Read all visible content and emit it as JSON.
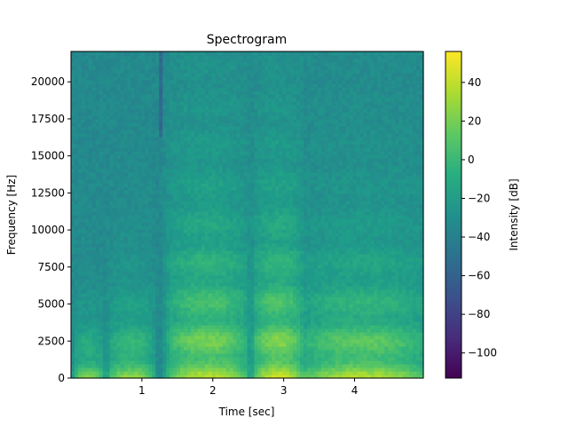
{
  "chart_data": {
    "type": "heatmap",
    "title": "Spectrogram",
    "xlabel": "Time [sec]",
    "ylabel": "Frequency [Hz]",
    "colorbar_label": "Intensity [dB]",
    "colormap": "viridis",
    "xlim": [
      0.0,
      4.97
    ],
    "ylim": [
      0,
      22050
    ],
    "clim": [
      -113,
      56
    ],
    "xticks": [
      {
        "value": 1,
        "label": "1"
      },
      {
        "value": 2,
        "label": "2"
      },
      {
        "value": 3,
        "label": "3"
      },
      {
        "value": 4,
        "label": "4"
      }
    ],
    "yticks": [
      {
        "value": 0,
        "label": "0"
      },
      {
        "value": 2500,
        "label": "2500"
      },
      {
        "value": 5000,
        "label": "5000"
      },
      {
        "value": 7500,
        "label": "7500"
      },
      {
        "value": 10000,
        "label": "10000"
      },
      {
        "value": 12500,
        "label": "12500"
      },
      {
        "value": 15000,
        "label": "15000"
      },
      {
        "value": 17500,
        "label": "17500"
      },
      {
        "value": 20000,
        "label": "20000"
      }
    ],
    "cticks": [
      {
        "value": 40,
        "label": "40"
      },
      {
        "value": 20,
        "label": "20"
      },
      {
        "value": 0,
        "label": "0"
      },
      {
        "value": -20,
        "label": "−20"
      },
      {
        "value": -40,
        "label": "−40"
      },
      {
        "value": -60,
        "label": "−60"
      },
      {
        "value": -80,
        "label": "−80"
      },
      {
        "value": -100,
        "label": "−100"
      }
    ],
    "lowpass_cutoff_hz": 16200,
    "noise_floor_db": -55,
    "bursts": [
      {
        "t_start": 0.05,
        "t_end": 0.45,
        "peak_db": 25,
        "f_extent_hz": 5000
      },
      {
        "t_start": 0.55,
        "t_end": 1.15,
        "peak_db": 30,
        "f_extent_hz": 7000
      },
      {
        "t_start": 1.4,
        "t_end": 2.45,
        "peak_db": 40,
        "f_extent_hz": 15500
      },
      {
        "t_start": 2.6,
        "t_end": 3.25,
        "peak_db": 45,
        "f_extent_hz": 15500
      },
      {
        "t_start": 3.3,
        "t_end": 4.95,
        "peak_db": 38,
        "f_extent_hz": 11000
      }
    ],
    "grid": false
  }
}
